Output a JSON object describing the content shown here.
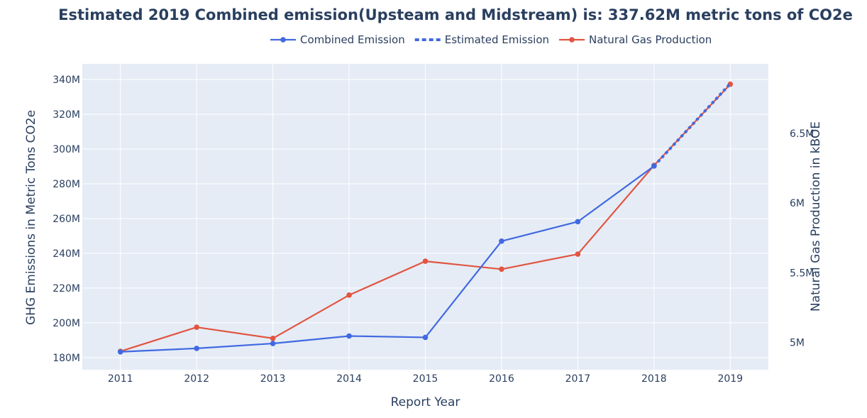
{
  "chart_data": {
    "type": "line",
    "title": "Estimated 2019 Combined emission(Upsteam and Midstream) is: 337.62M metric tons of CO2e",
    "xlabel": "Report Year",
    "ylabel": "GHG Emissions in Metric Tons CO2e",
    "y2label": "Natural Gas Production in kBOE",
    "xlim": [
      2010.5,
      2019.5
    ],
    "ylim": [
      173000000,
      349000000
    ],
    "y2lim": [
      4805000,
      6998000
    ],
    "x_ticks": [
      2011,
      2012,
      2013,
      2014,
      2015,
      2016,
      2017,
      2018,
      2019
    ],
    "y_ticks": [
      180000000,
      200000000,
      220000000,
      240000000,
      260000000,
      280000000,
      300000000,
      320000000,
      340000000
    ],
    "y_tick_labels": [
      "180M",
      "200M",
      "220M",
      "240M",
      "260M",
      "280M",
      "300M",
      "320M",
      "340M"
    ],
    "y2_ticks": [
      5000000,
      5500000,
      6000000,
      6500000
    ],
    "y2_tick_labels": [
      "5M",
      "5.5M",
      "6M",
      "6.5M"
    ],
    "grid": true,
    "legend_position": "top-center",
    "series": [
      {
        "name": "Combined Emission",
        "axis": "left",
        "style": "line+markers",
        "color": "#4169e1",
        "x": [
          2011,
          2012,
          2013,
          2014,
          2015,
          2016,
          2017,
          2018
        ],
        "values": [
          183300000,
          185300000,
          188100000,
          192400000,
          191600000,
          247000000,
          258200000,
          290200000
        ]
      },
      {
        "name": "Estimated Emission",
        "axis": "left",
        "style": "dotted",
        "color": "#4169e1",
        "x": [
          2018,
          2019
        ],
        "values": [
          290200000,
          337620000
        ]
      },
      {
        "name": "Natural Gas Production",
        "axis": "right",
        "style": "line+markers",
        "color": "#e15541",
        "x": [
          2011,
          2012,
          2013,
          2014,
          2015,
          2016,
          2017,
          2018,
          2019
        ],
        "values": [
          4937000,
          5110000,
          5030000,
          5340000,
          5583000,
          5526000,
          5634000,
          6270000,
          6852000
        ]
      }
    ]
  }
}
